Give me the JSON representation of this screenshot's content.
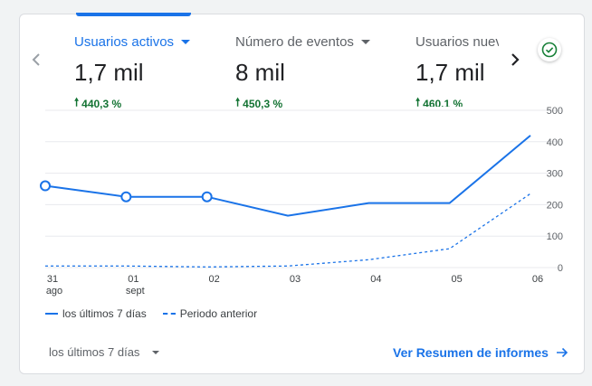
{
  "metrics": [
    {
      "label": "Usuarios activos",
      "value": "1,7 mil",
      "change": "440,3 %"
    },
    {
      "label": "Número de eventos",
      "value": "8 mil",
      "change": "450,3 %"
    },
    {
      "label": "Usuarios nuev",
      "value": "1,7 mil",
      "change": "460,1 %"
    }
  ],
  "icons": {
    "prev": "chevron-left-icon",
    "next": "chevron-right-icon",
    "status": "check-circle-icon",
    "link_arrow": "arrow-right-icon",
    "change": "arrow-up-icon",
    "range_caret": "caret-down-icon"
  },
  "colors": {
    "accent": "#1a73e8",
    "positive": "#137333",
    "status": "#188038"
  },
  "chart_data": {
    "type": "line",
    "x": [
      "31 ago",
      "01 sept",
      "02",
      "03",
      "04",
      "05",
      "06"
    ],
    "x_tick_labels": [
      [
        "31",
        "ago"
      ],
      [
        "01",
        "sept"
      ],
      [
        "02",
        ""
      ],
      [
        "03",
        ""
      ],
      [
        "04",
        ""
      ],
      [
        "05",
        ""
      ],
      [
        "06",
        ""
      ]
    ],
    "y_ticks": [
      "500",
      "400",
      "300",
      "200",
      "100",
      "0"
    ],
    "ylim": [
      0,
      500
    ],
    "series": [
      {
        "name": "los últimos 7 días",
        "style": "solid",
        "values": [
          260,
          225,
          225,
          165,
          205,
          205,
          420
        ],
        "markers": [
          true,
          true,
          true,
          false,
          false,
          false,
          false
        ]
      },
      {
        "name": "Periodo anterior",
        "style": "dashed",
        "values": [
          5,
          5,
          2,
          5,
          25,
          60,
          235
        ]
      }
    ]
  },
  "footer": {
    "range_label": "los últimos 7 días",
    "report_link": "Ver Resumen de informes"
  }
}
